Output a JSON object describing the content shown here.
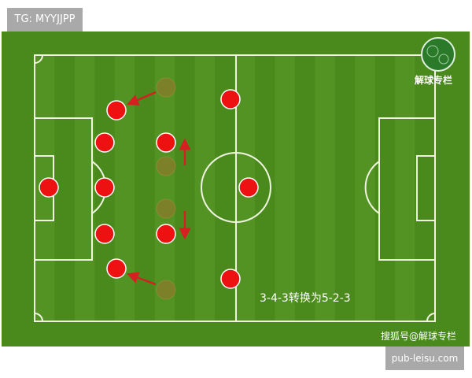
{
  "header": {
    "tag": "TG: MYYJJPP"
  },
  "pitch": {
    "logo_text": "解球专栏",
    "caption": "3-4-3转换为5-2-3",
    "watermark": "搜狐号@解球专栏",
    "colors": {
      "grass": "#4a8a1c",
      "stripe": "#5a9a2a",
      "lines": "#f0f5e0",
      "player": "#ee1111",
      "ghost": "#8a7a2a",
      "arrow": "#d42020"
    }
  },
  "footer": {
    "site": "pub-leisu.com"
  }
}
